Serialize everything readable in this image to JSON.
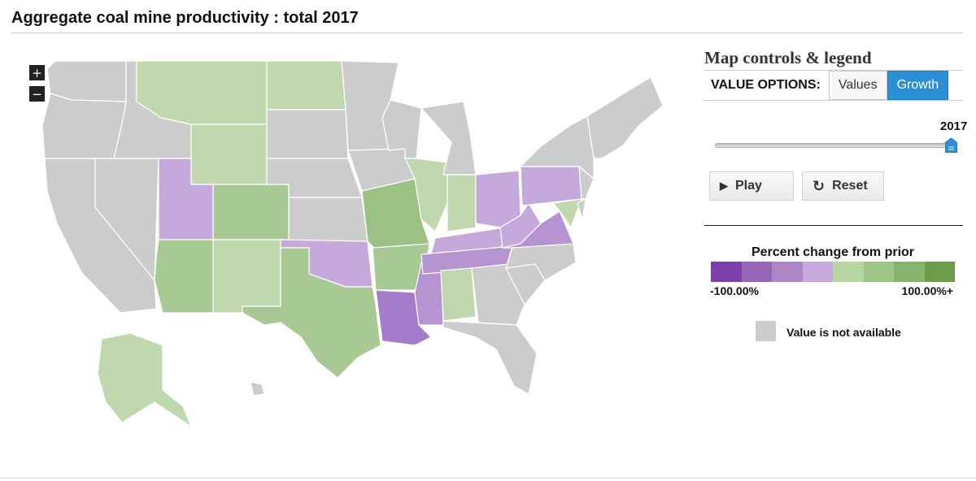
{
  "title": "Aggregate coal mine productivity : total 2017",
  "zoom": {
    "in_label": "+",
    "out_label": "−"
  },
  "panel": {
    "title": "Map controls & legend",
    "value_options_label": "VALUE OPTIONS:",
    "options": [
      "Values",
      "Growth"
    ],
    "selected_option": "Growth",
    "year": "2017",
    "year_slider_fraction": 1.0,
    "play_label": "Play",
    "reset_label": "Reset"
  },
  "legend": {
    "title": "Percent change from prior",
    "min_label": "-100.00%",
    "max_label": "100.00%+",
    "scale_colors": [
      "#7d3fa8",
      "#9666b8",
      "#ad86c6",
      "#c8a9db",
      "#b8d6a4",
      "#9fc488",
      "#86b46d",
      "#6a9c4c"
    ],
    "na_label": "Value is not available",
    "na_color": "#cccccc"
  },
  "map": {
    "icon": "us-states-map",
    "colors": {
      "no_data": "#cccccc",
      "growth_light": "#bfd8ad",
      "growth_medium": "#a9c994",
      "growth_strong": "#9cc184",
      "decline_light": "#c6a9dc",
      "decline_medium": "#b693d1",
      "decline_strong": "#a57bcb"
    },
    "states": {
      "WA": "no_data",
      "OR": "no_data",
      "CA": "no_data",
      "NV": "no_data",
      "ID": "no_data",
      "MT": "growth_light",
      "WY": "growth_light",
      "UT": "decline_light",
      "AZ": "growth_medium",
      "CO": "growth_medium",
      "NM": "growth_light",
      "ND": "growth_light",
      "SD": "no_data",
      "NE": "no_data",
      "KS": "no_data",
      "OK": "decline_light",
      "TX": "growth_medium",
      "MN": "no_data",
      "IA": "no_data",
      "MO": "growth_strong",
      "AR": "growth_medium",
      "LA": "decline_strong",
      "WI": "no_data",
      "IL": "growth_light",
      "MS": "decline_medium",
      "MI": "no_data",
      "IN": "growth_light",
      "KY": "decline_light",
      "TN": "decline_medium",
      "AL": "growth_light",
      "OH": "decline_light",
      "WV": "decline_light",
      "VA": "decline_medium",
      "PA": "decline_light",
      "MD": "growth_light",
      "GA": "no_data",
      "FL": "no_data",
      "SC": "no_data",
      "NC": "no_data",
      "NY": "no_data",
      "NJ": "no_data",
      "DE": "no_data",
      "NE_states": "no_data",
      "AK": "growth_light",
      "HI": "no_data"
    }
  }
}
